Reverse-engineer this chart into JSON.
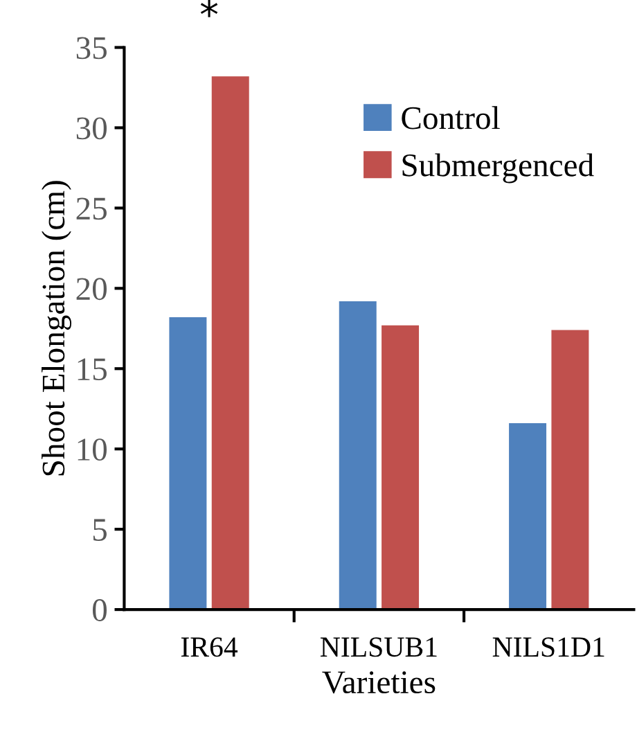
{
  "chart_data": {
    "type": "bar",
    "xlabel": "Varieties",
    "ylabel": "Shoot Elongation (cm)",
    "categories": [
      "IR64",
      "NILSUB1",
      "NILS1D1"
    ],
    "series": [
      {
        "name": "Control",
        "color": "#4f81bd",
        "values": [
          18.2,
          19.2,
          11.6
        ]
      },
      {
        "name": "Submergenced",
        "color": "#c0504d",
        "values": [
          33.2,
          17.7,
          17.4
        ]
      }
    ],
    "ylim": [
      0,
      35
    ],
    "yticks": [
      0,
      5,
      10,
      15,
      20,
      25,
      30,
      35
    ],
    "grid": false,
    "legend": "top right",
    "annotations": [
      "*"
    ]
  }
}
